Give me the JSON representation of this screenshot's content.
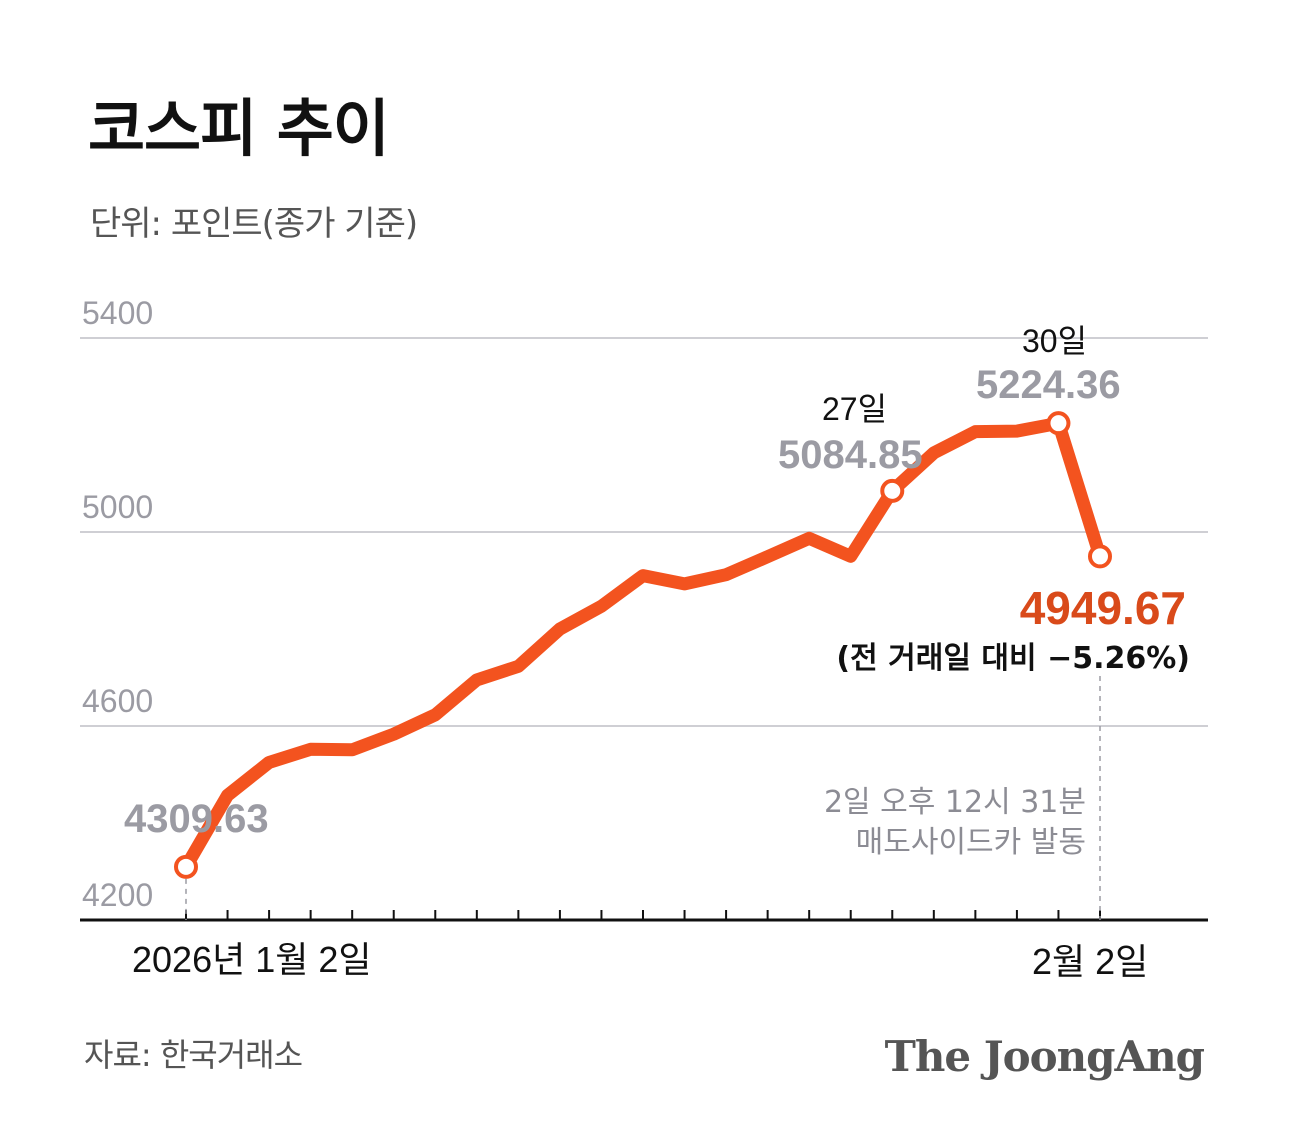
{
  "title": "코스피 추이",
  "unit_label": "단위: 포인트(종가 기준)",
  "source": "자료: 한국거래소",
  "brand": "The JoongAng",
  "colors": {
    "line": "#f3531f",
    "highlight": "#d94a1a",
    "muted": "#9b9ba3",
    "grid": "#cfcfd4"
  },
  "chart_data": {
    "type": "line",
    "title": "코스피 추이",
    "ylabel": "포인트(종가 기준)",
    "ylim": [
      4200,
      5400
    ],
    "yticks": [
      4200,
      4600,
      5000,
      5400
    ],
    "grid": true,
    "x_start_label": "2026년 1월 2일",
    "x_end_label": "2월 2일",
    "series": [
      {
        "name": "코스피",
        "values": [
          4309.63,
          4457,
          4525,
          4552,
          4551,
          4583,
          4623,
          4695,
          4723,
          4800,
          4847,
          4910,
          4893,
          4912,
          4949,
          4987,
          4950,
          5084.85,
          5163,
          5207,
          5208,
          5224.36,
          4949.67
        ]
      }
    ],
    "annotations": [
      {
        "index": 0,
        "value": "4309.63"
      },
      {
        "index": 17,
        "date": "27일",
        "value": "5084.85"
      },
      {
        "index": 21,
        "date": "30일",
        "value": "5224.36"
      },
      {
        "index": 22,
        "value": "4949.67",
        "change": "(전 거래일 대비 −5.26%)",
        "note": [
          "2일 오후 12시 31분",
          "매도사이드카 발동"
        ]
      }
    ]
  }
}
